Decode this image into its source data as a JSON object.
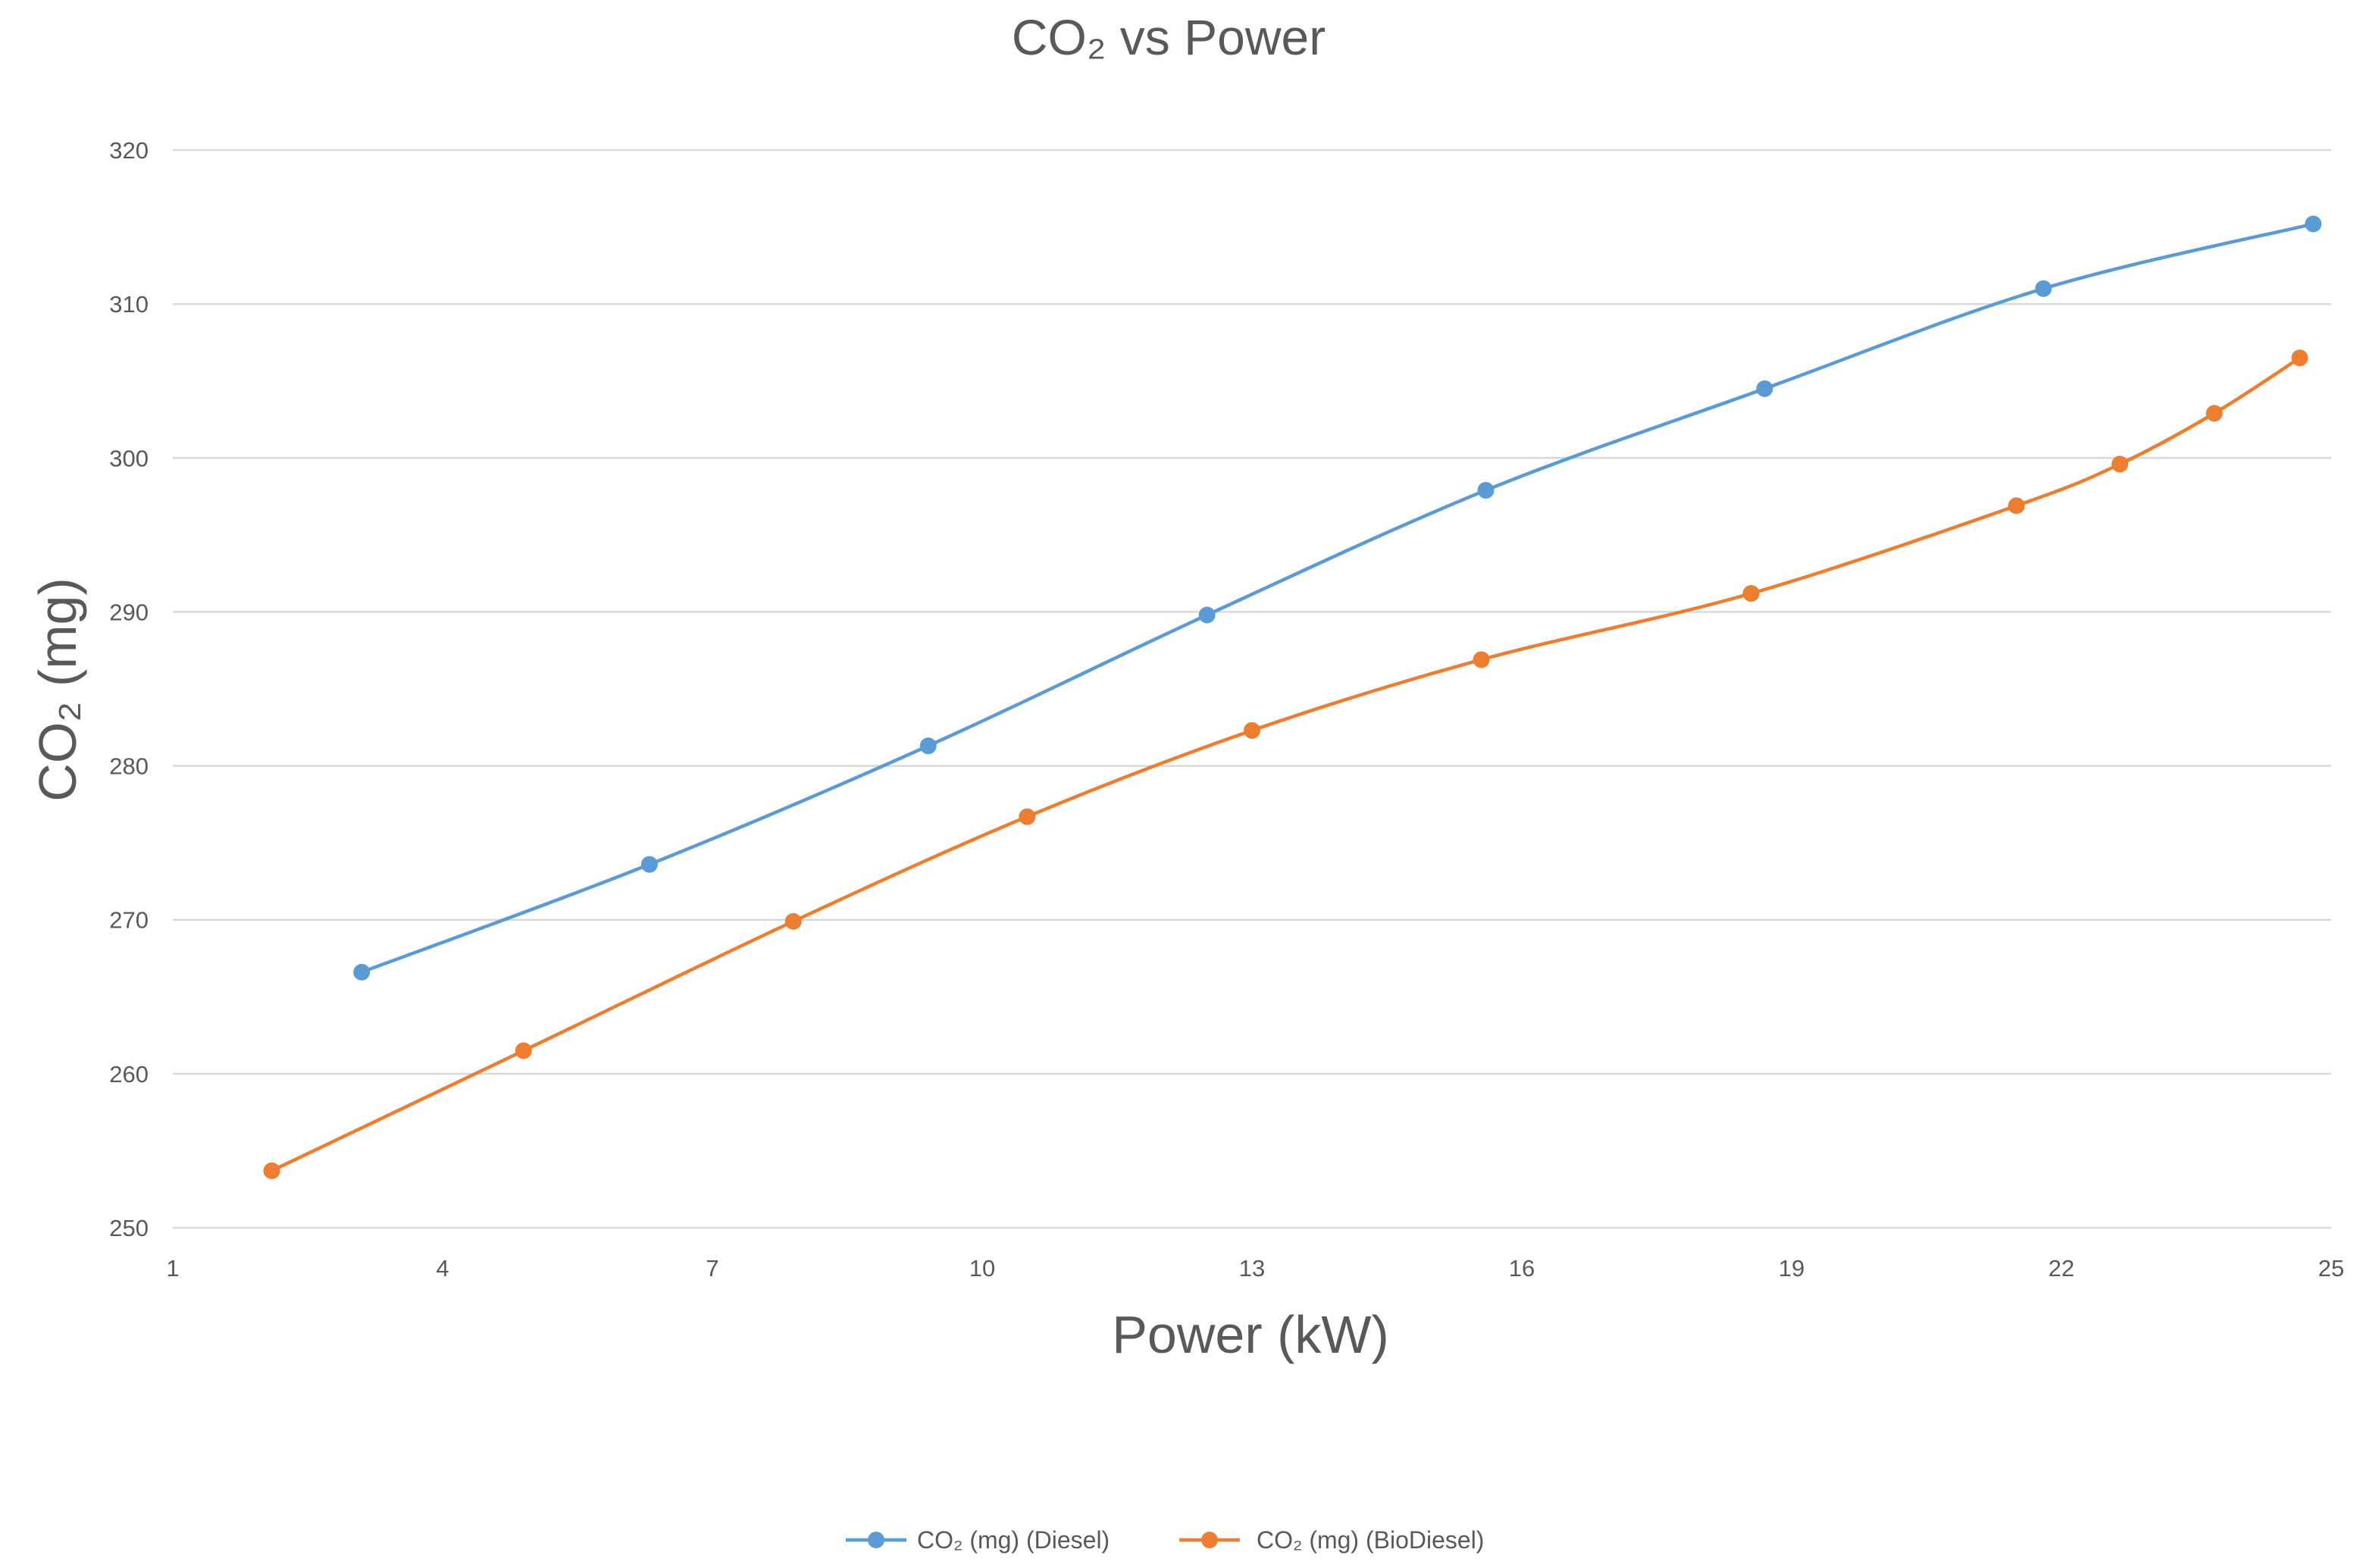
{
  "chart_data": {
    "type": "line",
    "title": "CO₂ vs Power",
    "xlabel": "Power (kW)",
    "ylabel": "CO₂ (mg)",
    "xlim": [
      1,
      25
    ],
    "ylim": [
      250,
      320
    ],
    "xticks": [
      "1",
      "4",
      "7",
      "10",
      "13",
      "16",
      "19",
      "22",
      "25"
    ],
    "yticks": [
      "250",
      "260",
      "270",
      "280",
      "290",
      "300",
      "310",
      "320"
    ],
    "grid": true,
    "legend_position": "bottom",
    "series": [
      {
        "name": "CO₂ (mg) (Diesel)",
        "color": "#5b9bd5",
        "x": [
          3.1,
          6.3,
          9.4,
          12.5,
          15.6,
          18.7,
          21.8,
          24.8
        ],
        "y": [
          266.6,
          273.6,
          281.3,
          289.8,
          297.9,
          304.5,
          311.0,
          315.2
        ]
      },
      {
        "name": "CO₂ (mg) (BioDiesel)",
        "color": "#ed7d31",
        "x": [
          2.1,
          4.9,
          7.9,
          10.5,
          13.0,
          15.55,
          18.55,
          21.5,
          22.65,
          23.7,
          24.65
        ],
        "y": [
          253.7,
          261.5,
          269.9,
          276.7,
          282.3,
          286.9,
          291.2,
          296.9,
          299.6,
          302.9,
          306.5
        ]
      }
    ]
  }
}
